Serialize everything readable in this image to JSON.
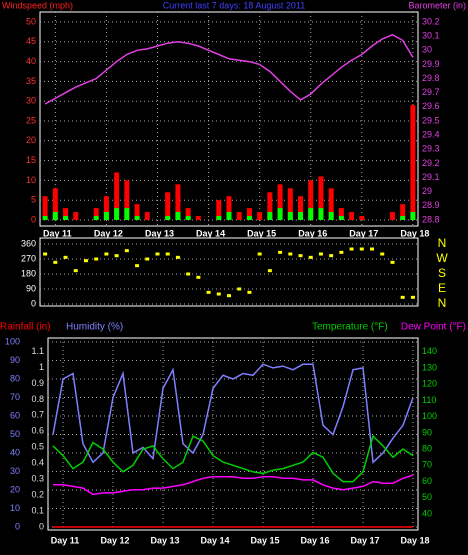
{
  "chart_data": [
    {
      "type": "bar",
      "title": "Current last 7 days: 18 August 2011",
      "ylabel": "Windspeed (mph)",
      "y2label": "Barometer (in)",
      "x": [
        10.8,
        11.0,
        11.2,
        11.4,
        11.6,
        11.8,
        12.0,
        12.2,
        12.4,
        12.6,
        12.8,
        13.0,
        13.2,
        13.4,
        13.6,
        13.8,
        14.0,
        14.2,
        14.4,
        14.6,
        14.8,
        15.0,
        15.2,
        15.4,
        15.6,
        15.8,
        16.0,
        16.2,
        16.4,
        16.6,
        16.8,
        17.0,
        17.2,
        17.4,
        17.6,
        17.8,
        18.0
      ],
      "xlim": [
        10.7,
        18.1
      ],
      "xticks": [
        {
          "value": 11,
          "label": "Day 11"
        },
        {
          "value": 12,
          "label": "Day 12"
        },
        {
          "value": 13,
          "label": "Day 13"
        },
        {
          "value": 14,
          "label": "Day 14"
        },
        {
          "value": 15,
          "label": "Day 15"
        },
        {
          "value": 16,
          "label": "Day 16"
        },
        {
          "value": 17,
          "label": "Day 17"
        },
        {
          "value": 18,
          "label": "Day 18"
        }
      ],
      "ylim": [
        0,
        50
      ],
      "yticks": [
        0,
        5,
        10,
        15,
        20,
        25,
        30,
        35,
        40,
        45,
        50
      ],
      "y2lim": [
        28.8,
        30.2
      ],
      "y2ticks": [
        28.8,
        28.9,
        29,
        29.1,
        29.2,
        29.3,
        29.4,
        29.5,
        29.6,
        29.7,
        29.8,
        29.9,
        30,
        30.1,
        30.2
      ],
      "grid": true,
      "series": [
        {
          "type": "bar",
          "color": "#ff0000",
          "values": [
            6,
            8,
            3,
            2,
            0,
            3,
            6,
            12,
            10,
            4,
            2,
            0,
            7,
            9,
            3,
            1,
            0,
            5,
            6,
            2,
            3,
            2,
            7,
            9,
            8,
            6,
            10,
            11,
            8,
            3,
            2,
            1,
            0,
            0,
            2,
            4,
            29
          ]
        },
        {
          "type": "bar",
          "color": "#00ff00",
          "values": [
            1,
            2,
            1,
            0,
            0,
            1,
            2,
            3,
            3,
            1,
            0,
            0,
            1,
            2,
            1,
            0,
            0,
            1,
            2,
            0,
            1,
            0,
            2,
            3,
            2,
            2,
            3,
            3,
            2,
            1,
            0,
            0,
            0,
            0,
            0,
            1,
            2
          ]
        },
        {
          "type": "line",
          "axis": "y2",
          "color": "#e040e0",
          "values": [
            29.62,
            29.66,
            29.7,
            29.74,
            29.77,
            29.8,
            29.86,
            29.92,
            29.97,
            30.0,
            30.01,
            30.03,
            30.05,
            30.06,
            30.05,
            30.03,
            30.0,
            29.97,
            29.94,
            29.93,
            29.92,
            29.9,
            29.85,
            29.78,
            29.71,
            29.65,
            29.69,
            29.76,
            29.82,
            29.88,
            29.93,
            29.97,
            30.03,
            30.08,
            30.11,
            30.07,
            29.95
          ]
        }
      ]
    },
    {
      "type": "scatter",
      "x": [
        10.8,
        11.0,
        11.2,
        11.4,
        11.6,
        11.8,
        12.0,
        12.2,
        12.4,
        12.6,
        12.8,
        13.0,
        13.2,
        13.4,
        13.6,
        13.8,
        14.0,
        14.2,
        14.4,
        14.6,
        14.8,
        15.0,
        15.2,
        15.4,
        15.6,
        15.8,
        16.0,
        16.2,
        16.4,
        16.6,
        16.8,
        17.0,
        17.2,
        17.4,
        17.6,
        17.8,
        18.0
      ],
      "xlim": [
        10.7,
        18.1
      ],
      "ylim": [
        0,
        360
      ],
      "yticks": [
        0,
        90,
        180,
        270,
        360
      ],
      "y2lim": [
        0,
        360
      ],
      "y2ticks": [
        {
          "value": 360,
          "label": "N"
        },
        {
          "value": 270,
          "label": "W"
        },
        {
          "value": 180,
          "label": "S"
        },
        {
          "value": 90,
          "label": "E"
        },
        {
          "value": 0,
          "label": "N"
        }
      ],
      "grid": true,
      "series": [
        {
          "color": "#ffff00",
          "values": [
            300,
            250,
            280,
            200,
            260,
            270,
            300,
            290,
            320,
            230,
            270,
            300,
            300,
            280,
            180,
            160,
            70,
            60,
            50,
            90,
            70,
            300,
            200,
            310,
            300,
            290,
            280,
            300,
            290,
            310,
            330,
            330,
            330,
            300,
            250,
            40,
            40
          ]
        }
      ]
    },
    {
      "type": "line",
      "x": [
        10.8,
        11.0,
        11.2,
        11.4,
        11.6,
        11.8,
        12.0,
        12.2,
        12.4,
        12.6,
        12.8,
        13.0,
        13.2,
        13.4,
        13.6,
        13.8,
        14.0,
        14.2,
        14.4,
        14.6,
        14.8,
        15.0,
        15.2,
        15.4,
        15.6,
        15.8,
        16.0,
        16.2,
        16.4,
        16.6,
        16.8,
        17.0,
        17.2,
        17.4,
        17.6,
        17.8,
        18.0
      ],
      "xlim": [
        10.7,
        18.1
      ],
      "xticks": [
        {
          "value": 11,
          "label": "Day 11"
        },
        {
          "value": 12,
          "label": "Day 12"
        },
        {
          "value": 13,
          "label": "Day 13"
        },
        {
          "value": 14,
          "label": "Day 14"
        },
        {
          "value": 15,
          "label": "Day 15"
        },
        {
          "value": 16,
          "label": "Day 16"
        },
        {
          "value": 17,
          "label": "Day 17"
        },
        {
          "value": 18,
          "label": "Day 18"
        }
      ],
      "ylim": [
        0,
        100
      ],
      "yticks": [
        0,
        10,
        20,
        30,
        40,
        50,
        60,
        70,
        80,
        90,
        100
      ],
      "y3lim": [
        0,
        1.16
      ],
      "y3ticks": [
        0,
        0.1,
        0.2,
        0.3,
        0.4,
        0.5,
        0.6,
        0.7,
        0.8,
        0.9,
        1,
        1.1
      ],
      "y2lim": [
        32,
        146
      ],
      "y2ticks": [
        40,
        50,
        60,
        70,
        80,
        90,
        100,
        110,
        120,
        130,
        140
      ],
      "grid": true,
      "series": [
        {
          "name": "Rainfall (in)",
          "axis": "y3",
          "color": "#ff0000",
          "values": [
            0,
            0,
            0,
            0,
            0,
            0,
            0,
            0,
            0,
            0,
            0,
            0,
            0,
            0,
            0,
            0,
            0,
            0,
            0,
            0,
            0,
            0,
            0,
            0,
            0,
            0,
            0,
            0,
            0,
            0,
            0,
            0,
            0,
            0,
            0,
            0,
            0
          ]
        },
        {
          "name": "Humidity (%)",
          "color": "#8080ff",
          "values": [
            50,
            80,
            83,
            45,
            35,
            40,
            70,
            83,
            40,
            43,
            37,
            75,
            85,
            45,
            40,
            50,
            75,
            82,
            80,
            83,
            82,
            88,
            86,
            87,
            85,
            88,
            88,
            55,
            50,
            65,
            85,
            86,
            35,
            40,
            48,
            55,
            70
          ]
        },
        {
          "name": "Temperature (°F)",
          "axis": "y2",
          "color": "#00d000",
          "values": [
            82,
            76,
            68,
            72,
            84,
            80,
            72,
            66,
            70,
            80,
            82,
            74,
            68,
            72,
            88,
            85,
            76,
            72,
            70,
            68,
            66,
            65,
            67,
            68,
            70,
            72,
            78,
            75,
            65,
            60,
            60,
            66,
            88,
            82,
            75,
            80,
            76
          ]
        },
        {
          "name": "Dew Point (°F)",
          "axis": "y2",
          "color": "#ff00ff",
          "values": [
            58,
            58,
            57,
            56,
            52,
            53,
            53,
            54,
            55,
            55,
            56,
            56,
            57,
            58,
            60,
            62,
            63,
            63,
            63,
            62,
            62,
            63,
            63,
            62,
            62,
            61,
            61,
            58,
            56,
            55,
            56,
            57,
            60,
            59,
            59,
            62,
            64
          ]
        }
      ]
    }
  ]
}
